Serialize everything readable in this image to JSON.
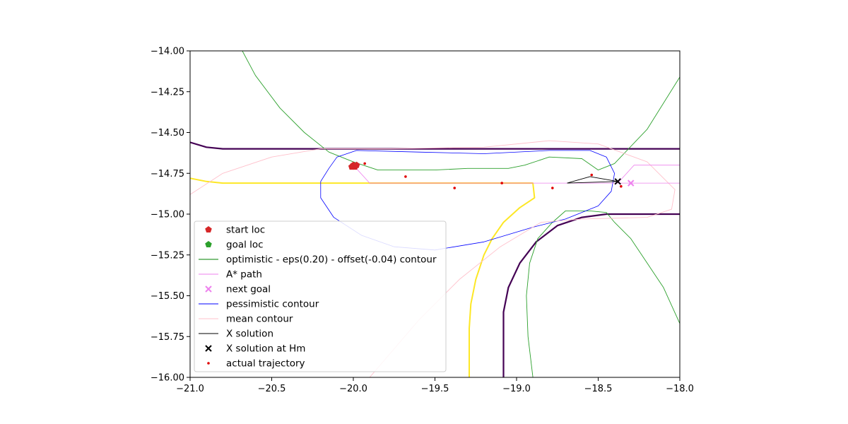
{
  "chart_data": {
    "type": "line",
    "title": "",
    "xlabel": "",
    "ylabel": "",
    "xlim": [
      -21.0,
      -18.0
    ],
    "ylim": [
      -16.0,
      -14.0
    ],
    "grid": false,
    "legend_placement": "lower-left",
    "x_ticks": [
      {
        "value": -21.0,
        "label": "−21.0"
      },
      {
        "value": -20.5,
        "label": "−20.5"
      },
      {
        "value": -20.0,
        "label": "−20.0"
      },
      {
        "value": -19.5,
        "label": "−19.5"
      },
      {
        "value": -19.0,
        "label": "−19.0"
      },
      {
        "value": -18.5,
        "label": "−18.5"
      },
      {
        "value": -18.0,
        "label": "−18.0"
      }
    ],
    "y_ticks": [
      {
        "value": -14.0,
        "label": "−14.00"
      },
      {
        "value": -14.25,
        "label": "−14.25"
      },
      {
        "value": -14.5,
        "label": "−14.50"
      },
      {
        "value": -14.75,
        "label": "−14.75"
      },
      {
        "value": -15.0,
        "label": "−15.00"
      },
      {
        "value": -15.25,
        "label": "−15.25"
      },
      {
        "value": -15.5,
        "label": "−15.50"
      },
      {
        "value": -15.75,
        "label": "−15.75"
      },
      {
        "value": -16.0,
        "label": "−16.00"
      }
    ],
    "legend": [
      {
        "label": "start loc",
        "color": "#d62728",
        "marker": "pentagon"
      },
      {
        "label": "goal loc",
        "color": "#2ca02c",
        "marker": "pentagon"
      },
      {
        "label": "optimistic - eps(0.20) - offset(-0.04) contour",
        "color": "#008000",
        "marker": "line"
      },
      {
        "label": "A* path",
        "color": "#ee82ee",
        "marker": "line"
      },
      {
        "label": "next goal",
        "color": "#ee82ee",
        "marker": "x"
      },
      {
        "label": "pessimistic contour",
        "color": "#0000ff",
        "marker": "line"
      },
      {
        "label": "mean contour",
        "color": "#ffc0cb",
        "marker": "line"
      },
      {
        "label": "X solution",
        "color": "#000000",
        "marker": "line"
      },
      {
        "label": "X solution at Hm",
        "color": "#000000",
        "marker": "x"
      },
      {
        "label": "actual trajectory",
        "color": "#e00000",
        "marker": "dot"
      }
    ],
    "series": [
      {
        "kind": "line",
        "color": "#440154",
        "width": 2.2,
        "points": [
          [
            -21.0,
            -14.56
          ],
          [
            -20.9,
            -14.59
          ],
          [
            -20.8,
            -14.6
          ],
          [
            -18.0,
            -14.6
          ]
        ]
      },
      {
        "kind": "line",
        "color": "#440154",
        "width": 2.2,
        "points": [
          [
            -19.08,
            -16.0
          ],
          [
            -19.08,
            -15.6
          ],
          [
            -19.05,
            -15.45
          ],
          [
            -18.98,
            -15.3
          ],
          [
            -18.88,
            -15.17
          ],
          [
            -18.75,
            -15.07
          ],
          [
            -18.6,
            -15.02
          ],
          [
            -18.45,
            -15.0
          ],
          [
            -18.0,
            -15.0
          ]
        ]
      },
      {
        "kind": "line",
        "color": "#fde725",
        "width": 2.0,
        "points": [
          [
            -21.0,
            -14.78
          ],
          [
            -20.9,
            -14.8
          ],
          [
            -20.8,
            -14.81
          ],
          [
            -18.9,
            -14.81
          ],
          [
            -18.89,
            -14.9
          ],
          [
            -18.98,
            -14.96
          ],
          [
            -19.08,
            -15.05
          ],
          [
            -19.15,
            -15.15
          ],
          [
            -19.2,
            -15.25
          ],
          [
            -19.25,
            -15.4
          ],
          [
            -19.28,
            -15.55
          ],
          [
            -19.29,
            -15.7
          ],
          [
            -19.29,
            -16.0
          ]
        ]
      },
      {
        "kind": "line",
        "color": "#ffa500",
        "width": 1.2,
        "points": [
          [
            -19.9,
            -14.81
          ],
          [
            -18.9,
            -14.81
          ]
        ]
      },
      {
        "kind": "line",
        "color": "#2ca02c",
        "width": 0.9,
        "points": [
          [
            -20.68,
            -14.0
          ],
          [
            -20.6,
            -14.15
          ],
          [
            -20.45,
            -14.35
          ],
          [
            -20.3,
            -14.5
          ],
          [
            -20.15,
            -14.62
          ],
          [
            -20.0,
            -14.68
          ],
          [
            -19.85,
            -14.73
          ],
          [
            -19.5,
            -14.73
          ],
          [
            -19.3,
            -14.72
          ],
          [
            -19.05,
            -14.72
          ],
          [
            -18.95,
            -14.7
          ],
          [
            -18.8,
            -14.65
          ],
          [
            -18.6,
            -14.66
          ],
          [
            -18.5,
            -14.73
          ],
          [
            -18.4,
            -14.69
          ],
          [
            -18.2,
            -14.48
          ],
          [
            -18.0,
            -14.16
          ]
        ]
      },
      {
        "kind": "line",
        "color": "#2ca02c",
        "width": 0.9,
        "points": [
          [
            -18.9,
            -16.0
          ],
          [
            -18.93,
            -15.75
          ],
          [
            -18.94,
            -15.5
          ],
          [
            -18.92,
            -15.3
          ],
          [
            -18.87,
            -15.15
          ],
          [
            -18.78,
            -15.05
          ],
          [
            -18.7,
            -14.98
          ],
          [
            -18.55,
            -14.98
          ],
          [
            -18.45,
            -14.99
          ],
          [
            -18.4,
            -15.05
          ],
          [
            -18.3,
            -15.15
          ],
          [
            -18.2,
            -15.3
          ],
          [
            -18.1,
            -15.45
          ],
          [
            -18.0,
            -15.67
          ]
        ]
      },
      {
        "kind": "line",
        "color": "#0000ff",
        "width": 0.8,
        "points": [
          [
            -20.1,
            -14.65
          ],
          [
            -19.98,
            -14.61
          ],
          [
            -19.6,
            -14.62
          ],
          [
            -19.2,
            -14.63
          ],
          [
            -18.8,
            -14.61
          ],
          [
            -18.55,
            -14.61
          ],
          [
            -18.45,
            -14.65
          ],
          [
            -18.4,
            -14.75
          ],
          [
            -18.42,
            -14.86
          ],
          [
            -18.5,
            -14.95
          ],
          [
            -18.7,
            -15.03
          ],
          [
            -18.9,
            -15.08
          ],
          [
            -19.2,
            -15.17
          ],
          [
            -19.5,
            -15.22
          ],
          [
            -19.75,
            -15.2
          ],
          [
            -19.95,
            -15.13
          ],
          [
            -20.12,
            -15.02
          ],
          [
            -20.2,
            -14.9
          ],
          [
            -20.2,
            -14.8
          ],
          [
            -20.15,
            -14.72
          ],
          [
            -20.1,
            -14.65
          ]
        ]
      },
      {
        "kind": "line",
        "color": "#ffc0cb",
        "width": 0.9,
        "points": [
          [
            -21.0,
            -14.88
          ],
          [
            -20.8,
            -14.75
          ],
          [
            -20.5,
            -14.65
          ],
          [
            -20.2,
            -14.6
          ],
          [
            -19.8,
            -14.6
          ],
          [
            -19.2,
            -14.59
          ],
          [
            -18.8,
            -14.55
          ],
          [
            -18.5,
            -14.57
          ],
          [
            -18.2,
            -14.68
          ],
          [
            -18.03,
            -14.85
          ],
          [
            -18.05,
            -14.97
          ],
          [
            -18.2,
            -15.02
          ],
          [
            -18.6,
            -15.03
          ],
          [
            -18.85,
            -15.05
          ],
          [
            -19.1,
            -15.2
          ],
          [
            -19.35,
            -15.4
          ],
          [
            -19.6,
            -15.65
          ],
          [
            -19.9,
            -16.0
          ]
        ]
      },
      {
        "kind": "line",
        "color": "#ee82ee",
        "width": 0.8,
        "points": [
          [
            -20.0,
            -14.7
          ],
          [
            -19.9,
            -14.81
          ],
          [
            -18.3,
            -14.81
          ],
          [
            -18.0,
            -14.81
          ]
        ]
      },
      {
        "kind": "line",
        "color": "#ee82ee",
        "width": 0.8,
        "points": [
          [
            -18.38,
            -14.81
          ],
          [
            -18.28,
            -14.7
          ],
          [
            -18.0,
            -14.7
          ]
        ]
      },
      {
        "kind": "line",
        "color": "#000000",
        "width": 0.9,
        "points": [
          [
            -18.69,
            -14.81
          ],
          [
            -18.55,
            -14.77
          ],
          [
            -18.38,
            -14.8
          ]
        ]
      },
      {
        "kind": "line",
        "color": "#000000",
        "width": 0.9,
        "points": [
          [
            -18.69,
            -14.81
          ],
          [
            -18.38,
            -14.8
          ]
        ]
      },
      {
        "kind": "scatter",
        "color": "#d62728",
        "marker": "pentagon",
        "points": [
          [
            -20.0,
            -14.7
          ],
          [
            -19.99,
            -14.71
          ],
          [
            -20.01,
            -14.71
          ],
          [
            -19.98,
            -14.7
          ]
        ]
      },
      {
        "kind": "scatter",
        "color": "#ee82ee",
        "marker": "x",
        "points": [
          [
            -18.3,
            -14.81
          ]
        ]
      },
      {
        "kind": "scatter",
        "color": "#000000",
        "marker": "x",
        "points": [
          [
            -18.38,
            -14.8
          ]
        ]
      },
      {
        "kind": "scatter",
        "color": "#e00000",
        "marker": "dot",
        "points": [
          [
            -19.93,
            -14.69
          ],
          [
            -19.68,
            -14.77
          ],
          [
            -19.38,
            -14.84
          ],
          [
            -19.09,
            -14.81
          ],
          [
            -18.78,
            -14.84
          ],
          [
            -18.54,
            -14.76
          ],
          [
            -18.36,
            -14.83
          ]
        ]
      }
    ]
  }
}
